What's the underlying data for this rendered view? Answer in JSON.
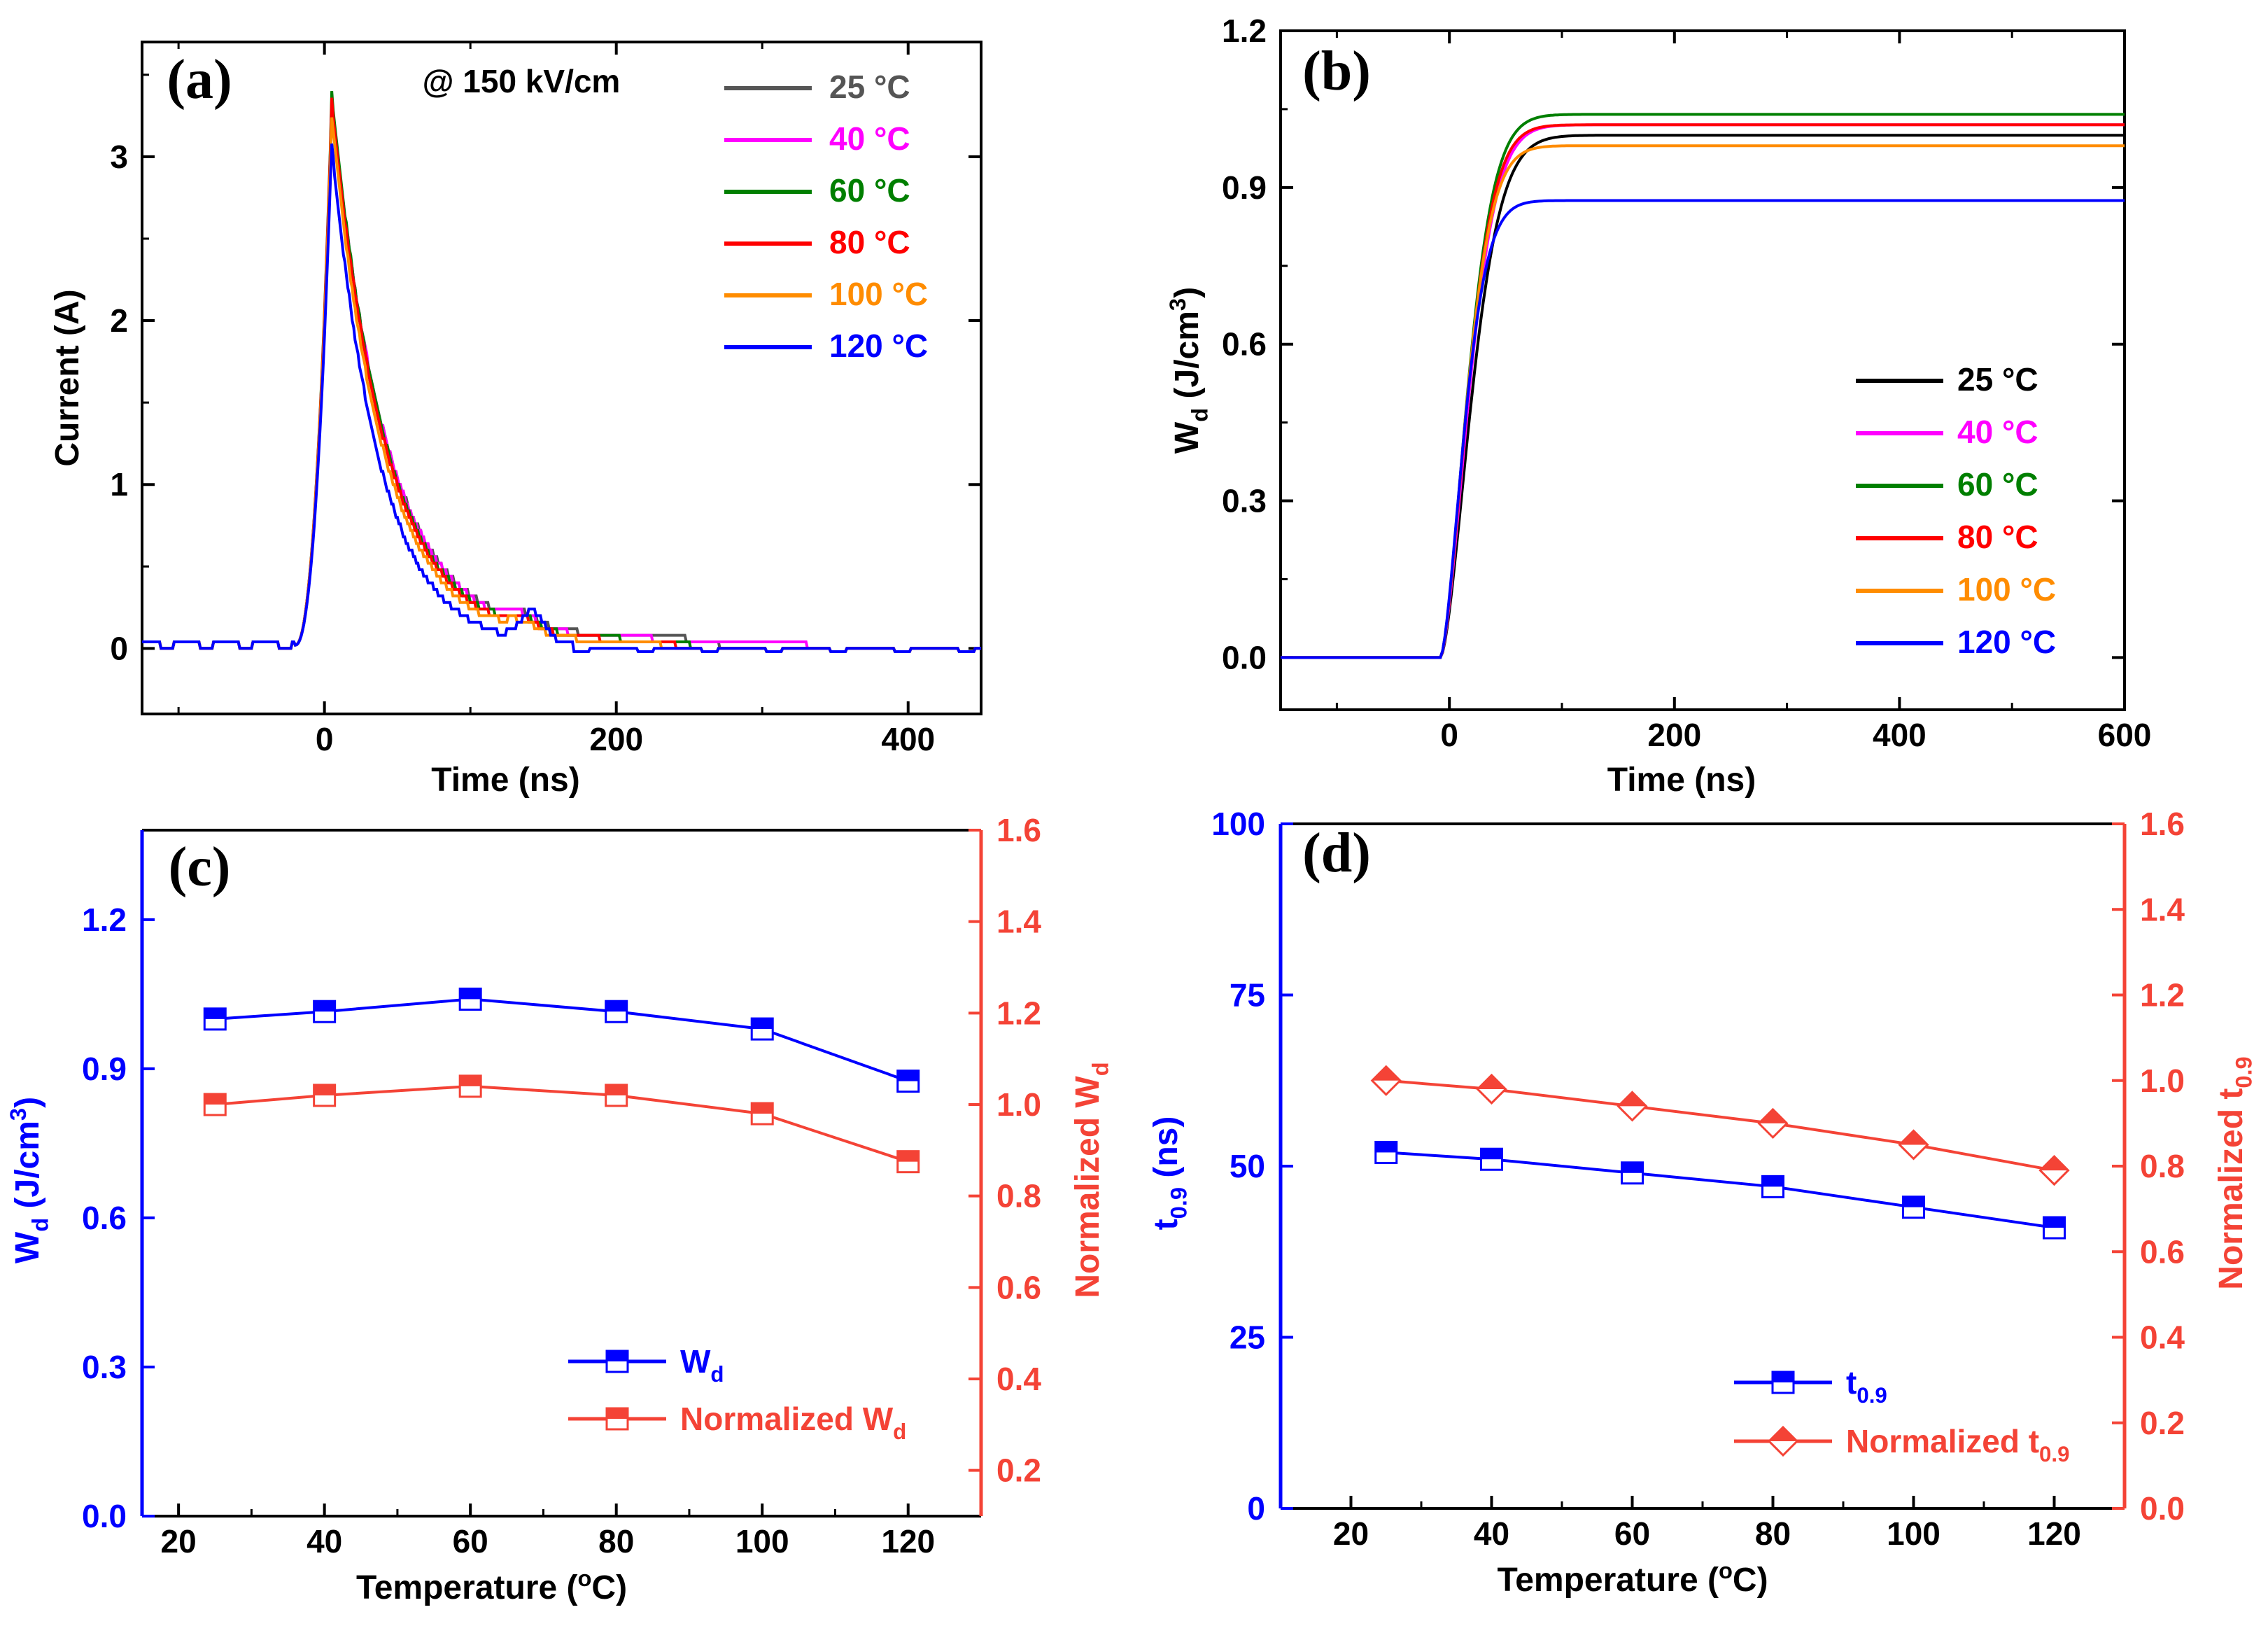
{
  "chart_data": [
    {
      "id": "a",
      "type": "line",
      "panel_label": "(a)",
      "annotation": "@ 150 kV/cm",
      "xlabel": "Time (ns)",
      "ylabel": "Current (A)",
      "xlim": [
        -125,
        450
      ],
      "ylim": [
        -0.4,
        3.7
      ],
      "xticks": [
        0,
        200,
        400
      ],
      "yticks": [
        0,
        1,
        2,
        3
      ],
      "legend_position": "top-right",
      "series": [
        {
          "name": "25 °C",
          "color": "#555555",
          "peak": 3.22,
          "tau": 37,
          "floor": 0.08,
          "tail_end": 270
        },
        {
          "name": "40 °C",
          "color": "#ff00ff",
          "peak": 3.25,
          "tau": 37,
          "floor": 0.07,
          "tail_end": 330
        },
        {
          "name": "60 °C",
          "color": "#007f00",
          "peak": 3.31,
          "tau": 36,
          "floor": 0.06,
          "tail_end": 250
        },
        {
          "name": "80 °C",
          "color": "#ff0000",
          "peak": 3.28,
          "tau": 36,
          "floor": 0.05,
          "tail_end": 240
        },
        {
          "name": "100 °C",
          "color": "#ff8c00",
          "peak": 3.2,
          "tau": 35,
          "floor": 0.04,
          "tail_end": 230
        },
        {
          "name": "120 °C",
          "color": "#0000ff",
          "peak": 3.08,
          "tau": 33,
          "floor": 0.0,
          "tail_end": 170
        }
      ]
    },
    {
      "id": "b",
      "type": "line",
      "panel_label": "(b)",
      "xlabel": "Time (ns)",
      "ylabel": "W",
      "ylabel_sub": "d",
      "ylabel_units": " (J/cm",
      "ylabel_sup": "3",
      "ylabel_close": ")",
      "xlim": [
        -150,
        600
      ],
      "ylim": [
        -0.1,
        1.2
      ],
      "xticks": [
        0,
        200,
        400,
        600
      ],
      "yticks": [
        "0.0",
        "0.3",
        "0.6",
        "0.9",
        "1.2"
      ],
      "legend_position": "center-right",
      "series": [
        {
          "name": "25 °C",
          "color": "#000000",
          "final": 1.0,
          "tau": 26
        },
        {
          "name": "40 °C",
          "color": "#ff00ff",
          "final": 1.02,
          "tau": 24
        },
        {
          "name": "60 °C",
          "color": "#007f00",
          "final": 1.04,
          "tau": 23
        },
        {
          "name": "80 °C",
          "color": "#ff0000",
          "final": 1.02,
          "tau": 23
        },
        {
          "name": "100 °C",
          "color": "#ff8c00",
          "final": 0.98,
          "tau": 22
        },
        {
          "name": "120 °C",
          "color": "#0000ff",
          "final": 0.875,
          "tau": 20
        }
      ]
    },
    {
      "id": "c",
      "type": "line",
      "panel_label": "(c)",
      "xlabel": "Temperature (",
      "xlabel_sup": "o",
      "xlabel_close": "C)",
      "ylabel_left": "W",
      "ylabel_left_sub": "d",
      "ylabel_left_units": " (J/cm",
      "ylabel_left_sup": "3",
      "ylabel_left_close": ")",
      "ylabel_right": "Normalized W",
      "ylabel_right_sub": "d",
      "xlim": [
        15,
        130
      ],
      "ylim_left": [
        0,
        1.38
      ],
      "ylim_right": [
        0.1,
        1.6
      ],
      "xticks": [
        20,
        40,
        60,
        80,
        100,
        120
      ],
      "yticks_left": [
        "0.0",
        "0.3",
        "0.6",
        "0.9",
        "1.2"
      ],
      "yticks_right": [
        "0.2",
        "0.4",
        "0.6",
        "0.8",
        "1.0",
        "1.2",
        "1.4",
        "1.6"
      ],
      "x": [
        25,
        40,
        60,
        80,
        100,
        120
      ],
      "series": [
        {
          "name": "W",
          "name_sub": "d",
          "axis": "left",
          "color": "#0000ff",
          "marker": "square-half",
          "values": [
            1.0,
            1.015,
            1.04,
            1.015,
            0.98,
            0.875
          ]
        },
        {
          "name": "Normalized W",
          "name_sub": "d",
          "axis": "right",
          "color": "#f44336",
          "marker": "square-half",
          "values": [
            1.0,
            1.02,
            1.04,
            1.02,
            0.98,
            0.875
          ]
        }
      ],
      "legend_position": "bottom-right"
    },
    {
      "id": "d",
      "type": "line",
      "panel_label": "(d)",
      "xlabel": "Temperature (",
      "xlabel_sup": "o",
      "xlabel_close": "C)",
      "ylabel_left": "t",
      "ylabel_left_sub": "0.9",
      "ylabel_left_units": " (ns)",
      "ylabel_right": "Normalized t",
      "ylabel_right_sub": "0.9",
      "xlim": [
        10,
        130
      ],
      "ylim_left": [
        0,
        100
      ],
      "ylim_right": [
        0,
        1.6
      ],
      "xticks": [
        20,
        40,
        60,
        80,
        100,
        120
      ],
      "yticks_left": [
        "0",
        "25",
        "50",
        "75",
        "100"
      ],
      "yticks_right": [
        "0.0",
        "0.2",
        "0.4",
        "0.6",
        "0.8",
        "1.0",
        "1.2",
        "1.4",
        "1.6"
      ],
      "x": [
        25,
        40,
        60,
        80,
        100,
        120
      ],
      "series": [
        {
          "name": "t",
          "name_sub": "0.9",
          "axis": "left",
          "color": "#0000ff",
          "marker": "square-half",
          "values": [
            52,
            51,
            49,
            47,
            44,
            41
          ]
        },
        {
          "name": "Normalized t",
          "name_sub": "0.9",
          "axis": "right",
          "color": "#f44336",
          "marker": "diamond-half",
          "values": [
            1.0,
            0.98,
            0.94,
            0.9,
            0.85,
            0.79
          ]
        }
      ],
      "legend_position": "bottom-right"
    }
  ]
}
